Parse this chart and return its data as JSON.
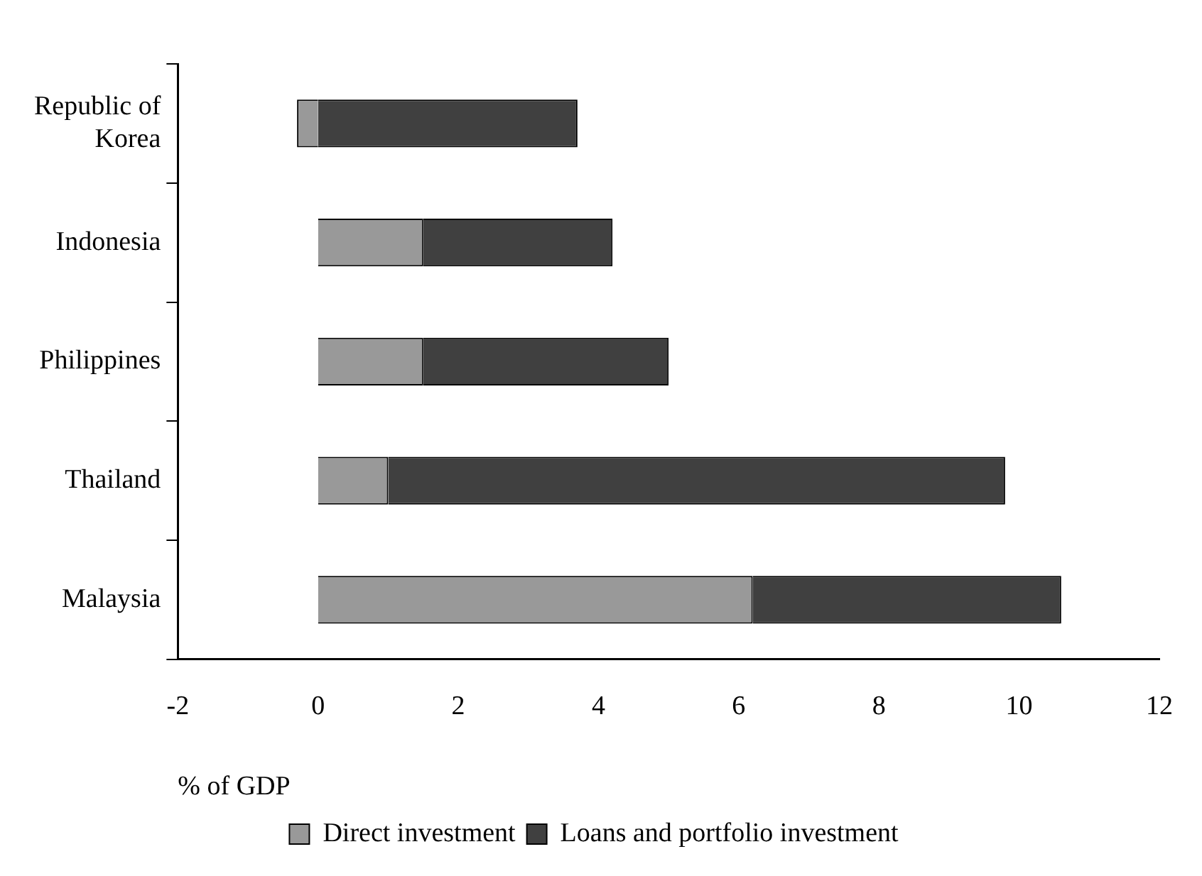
{
  "chart_data": {
    "type": "bar",
    "orientation": "horizontal",
    "stacked": true,
    "categories": [
      "Republic of Korea",
      "Indonesia",
      "Philippines",
      "Thailand",
      "Malaysia"
    ],
    "series": [
      {
        "name": "Direct investment",
        "color": "#999999",
        "values": [
          -0.3,
          1.5,
          1.5,
          1.0,
          6.2
        ]
      },
      {
        "name": "Loans and portfolio investment",
        "color": "#404040",
        "values": [
          3.7,
          2.7,
          3.5,
          8.8,
          4.4
        ]
      }
    ],
    "xlabel": "% of GDP",
    "xlim": [
      -2,
      12
    ],
    "xticks": [
      -2,
      0,
      2,
      4,
      6,
      8,
      10,
      12
    ],
    "grid": false,
    "legend": "bottom"
  }
}
